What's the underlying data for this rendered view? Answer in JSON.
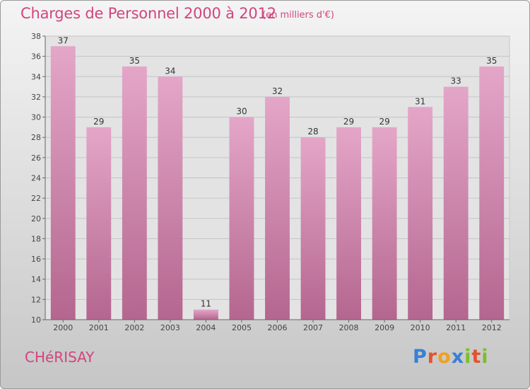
{
  "chart_data": {
    "type": "bar",
    "title": "Charges de Personnel 2000 à 2012",
    "subtitle": "(en milliers d'€)",
    "categories": [
      "2000",
      "2001",
      "2002",
      "2003",
      "2004",
      "2005",
      "2006",
      "2007",
      "2008",
      "2009",
      "2010",
      "2011",
      "2012"
    ],
    "values": [
      37,
      29,
      35,
      34,
      11,
      30,
      32,
      28,
      29,
      29,
      31,
      33,
      35
    ],
    "ylim": [
      10,
      38
    ],
    "yticks": [
      10,
      12,
      14,
      16,
      18,
      20,
      22,
      24,
      26,
      28,
      30,
      32,
      34,
      36,
      38
    ],
    "grid": true,
    "bar_color": "#d98cb4",
    "bar_color_dark": "#b8608e"
  },
  "footer": {
    "town": "CHéRISAY",
    "logo_letters": [
      "P",
      "r",
      "o",
      "x",
      "i",
      "t",
      "i"
    ],
    "logo_colors": [
      "#3a7fd5",
      "#e0542d",
      "#f0a020",
      "#3a7fd5",
      "#7bbf2a",
      "#e0542d",
      "#7bbf2a"
    ]
  }
}
